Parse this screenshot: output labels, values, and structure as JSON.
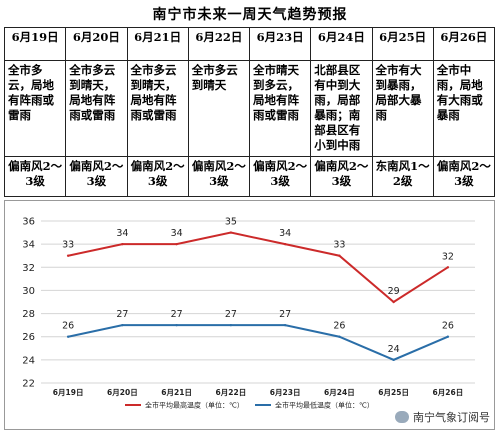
{
  "title": "南宁市未来一周天气趋势预报",
  "days": [
    {
      "date": "6月19日",
      "desc": "全市多云，局地有阵雨或雷雨",
      "wind": "偏南风2～3级"
    },
    {
      "date": "6月20日",
      "desc": "全市多云到晴天，局地有阵雨或雷雨",
      "wind": "偏南风2～3级"
    },
    {
      "date": "6月21日",
      "desc": "全市多云到晴天，局地有阵雨或雷雨",
      "wind": "偏南风2～3级"
    },
    {
      "date": "6月22日",
      "desc": "全市多云到晴天",
      "wind": "偏南风2～3级"
    },
    {
      "date": "6月23日",
      "desc": "全市晴天到多云，局地有阵雨或雷雨",
      "wind": "偏南风2～3级"
    },
    {
      "date": "6月24日",
      "desc": "北部县区有中到大雨，局部暴雨；南部县区有小到中雨",
      "wind": "偏南风2～3级"
    },
    {
      "date": "6月25日",
      "desc": "全市有大到暴雨，局部大暴雨",
      "wind": "东南风1～2级"
    },
    {
      "date": "6月26日",
      "desc": "全市中雨，局地有大雨或暴雨",
      "wind": "偏南风2～3级"
    }
  ],
  "chart_data": {
    "type": "line",
    "categories": [
      "6月19日",
      "6月20日",
      "6月21日",
      "6月22日",
      "6月23日",
      "6月24日",
      "6月25日",
      "6月26日"
    ],
    "series": [
      {
        "name": "全市平均最高温度（单位：℃）",
        "values": [
          33,
          34,
          34,
          35,
          34,
          33,
          29,
          32
        ],
        "color": "#cc2a2a"
      },
      {
        "name": "全市平均最低温度（单位：℃）",
        "values": [
          26,
          27,
          27,
          27,
          27,
          26,
          24,
          26
        ],
        "color": "#2a6ea8"
      }
    ],
    "ylim": [
      22,
      36
    ],
    "yticks": [
      "22",
      "24",
      "26",
      "28",
      "30",
      "32",
      "34",
      "36"
    ],
    "grid": true,
    "legend": "bottom"
  },
  "watermark": "南宁气象订阅号"
}
